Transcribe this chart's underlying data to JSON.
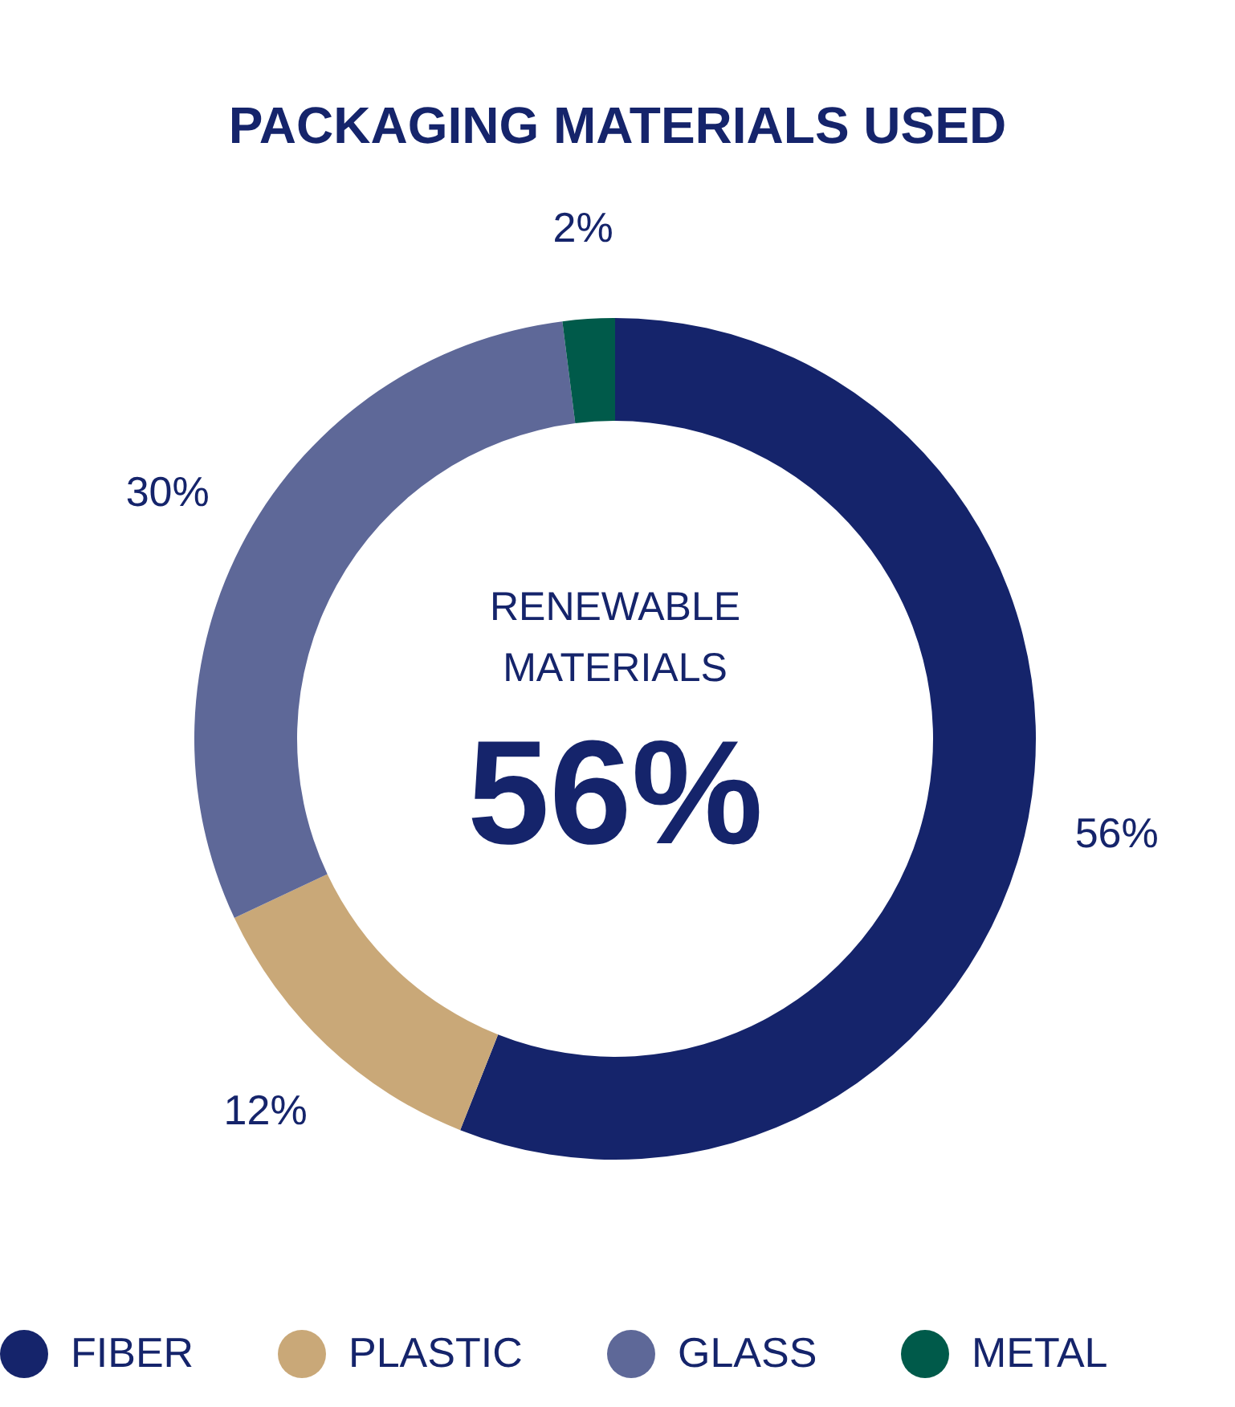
{
  "chart_data": {
    "type": "donut",
    "title": "PACKAGING MATERIALS USED",
    "categories": [
      "FIBER",
      "PLASTIC",
      "GLASS",
      "METAL"
    ],
    "values": [
      56,
      12,
      30,
      2
    ],
    "colors": [
      "#15246b",
      "#c9a878",
      "#5e6898",
      "#005a4a"
    ],
    "value_labels": [
      "56%",
      "12%",
      "30%",
      "2%"
    ],
    "annotations": [
      "RENEWABLE MATERIALS",
      "56%"
    ],
    "legend": "bottom"
  }
}
